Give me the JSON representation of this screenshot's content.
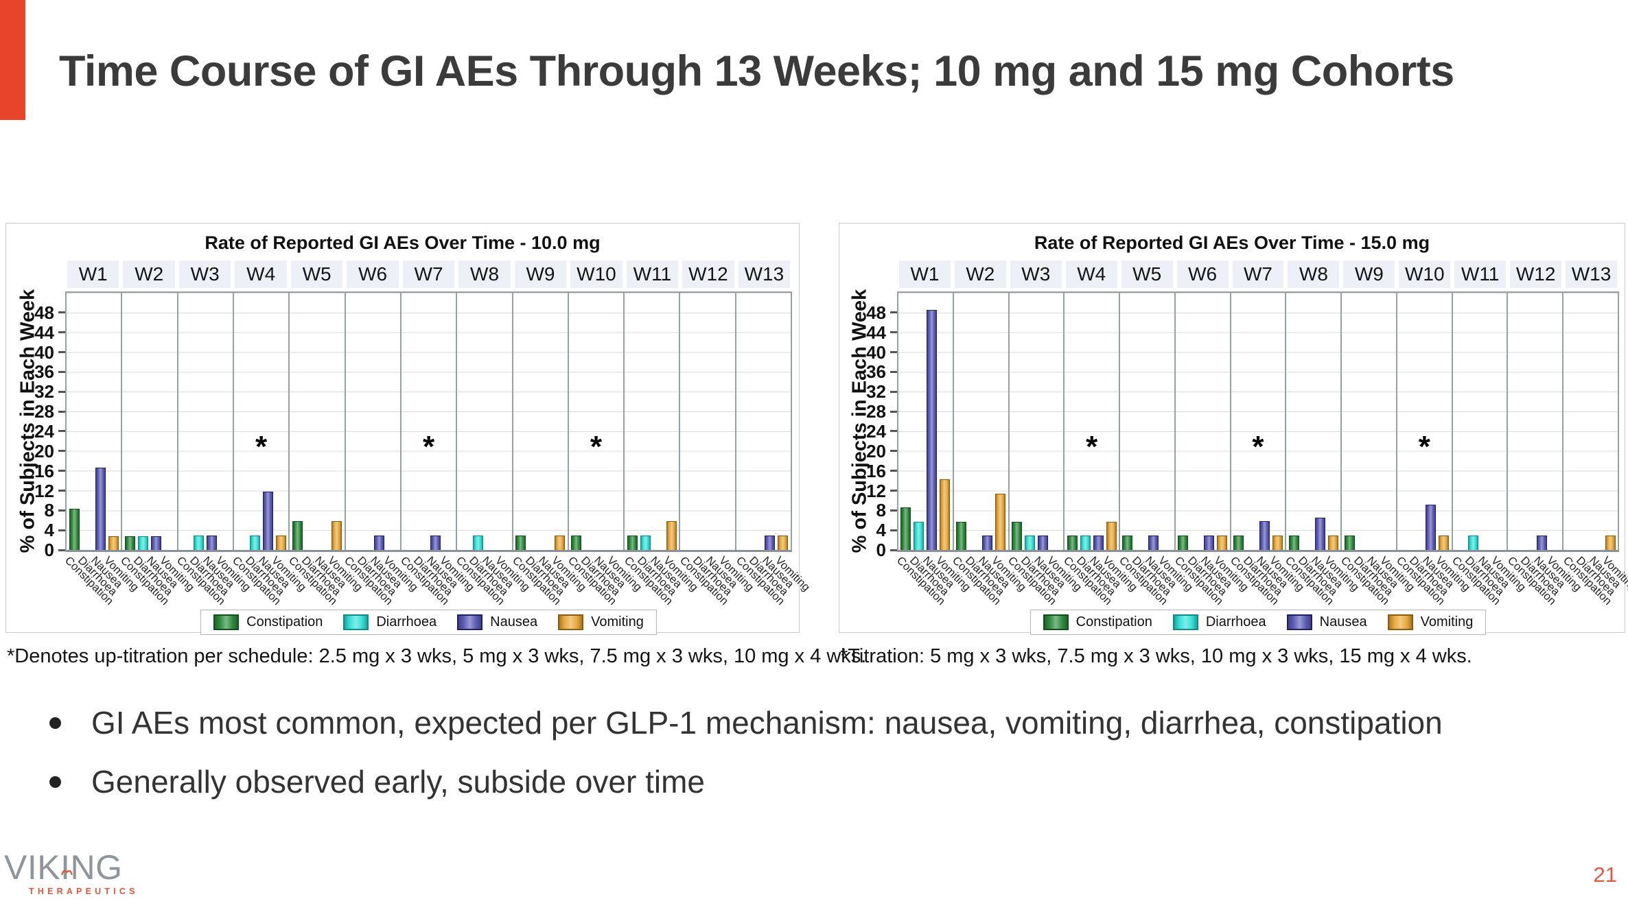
{
  "slide": {
    "title": "Time Course of GI AEs Through 13 Weeks; 10 mg and 15 mg Cohorts",
    "accent_color": "#E8432B",
    "bullets": [
      "GI AEs most common, expected per GLP-1 mechanism: nausea, vomiting, diarrhea, constipation",
      "Generally observed early, subside over time"
    ],
    "logo": {
      "name": "VIKING",
      "subtitle": "THERAPEUTICS"
    },
    "page_number": "21"
  },
  "chart_data": [
    {
      "type": "bar",
      "title": "Rate of Reported GI AEs Over Time - 10.0 mg",
      "ylabel": "% of Subjects in Each Week",
      "ylim": [
        0,
        52
      ],
      "ytick_step": 4,
      "ytick_max": 48,
      "grid": true,
      "legend_position": "bottom",
      "week_header_bg": "#EDF0F7",
      "categories": [
        "W1",
        "W2",
        "W3",
        "W4",
        "W5",
        "W6",
        "W7",
        "W8",
        "W9",
        "W10",
        "W11",
        "W12",
        "W13"
      ],
      "category_axis_labels": [
        "Constipation",
        "Diarrhoea",
        "Nausea",
        "Vomiting"
      ],
      "series": [
        {
          "name": "Constipation",
          "color": "#2F8B3E",
          "border": "#124F1D",
          "values": [
            8.3,
            2.8,
            0,
            0,
            5.9,
            0,
            0,
            0,
            2.9,
            2.9,
            2.9,
            0,
            0
          ]
        },
        {
          "name": "Diarrhoea",
          "color": "#35E0D6",
          "border": "#0B8C85",
          "values": [
            0,
            2.8,
            2.9,
            2.9,
            0,
            0,
            0,
            2.9,
            0,
            0,
            2.9,
            0,
            0
          ]
        },
        {
          "name": "Nausea",
          "color": "#5B5BB7",
          "border": "#1F1F63",
          "values": [
            16.7,
            2.8,
            2.9,
            11.8,
            0,
            2.9,
            2.9,
            0,
            0,
            0,
            0,
            0,
            2.9
          ]
        },
        {
          "name": "Vomiting",
          "color": "#E9A83C",
          "border": "#8A5B0B",
          "values": [
            2.8,
            0,
            0,
            2.9,
            5.9,
            0,
            0,
            0,
            2.9,
            0,
            5.9,
            0,
            2.9
          ]
        }
      ],
      "asterisk_categories": [
        "W4",
        "W7",
        "W10"
      ],
      "asterisk_marker": "*",
      "asterisk_y": 20,
      "footnote": "*Denotes up-titration per schedule: 2.5 mg x 3 wks, 5 mg x 3 wks, 7.5 mg x 3 wks, 10 mg x 4 wks."
    },
    {
      "type": "bar",
      "title": "Rate of Reported GI AEs Over Time - 15.0 mg",
      "ylabel": "% of Subjects in Each Week",
      "ylim": [
        0,
        52
      ],
      "ytick_step": 4,
      "ytick_max": 48,
      "grid": true,
      "legend_position": "bottom",
      "week_header_bg": "#EDF0F7",
      "categories": [
        "W1",
        "W2",
        "W3",
        "W4",
        "W5",
        "W6",
        "W7",
        "W8",
        "W9",
        "W10",
        "W11",
        "W12",
        "W13"
      ],
      "category_axis_labels": [
        "Constipation",
        "Diarrhoea",
        "Nausea",
        "Vomiting"
      ],
      "series": [
        {
          "name": "Constipation",
          "color": "#2F8B3E",
          "border": "#124F1D",
          "values": [
            8.6,
            5.7,
            5.7,
            2.9,
            2.9,
            2.9,
            2.9,
            2.9,
            2.9,
            0,
            0,
            0,
            0
          ]
        },
        {
          "name": "Diarrhoea",
          "color": "#35E0D6",
          "border": "#0B8C85",
          "values": [
            5.7,
            0,
            2.9,
            2.9,
            0,
            0,
            0,
            0,
            0,
            0,
            2.9,
            0,
            0
          ]
        },
        {
          "name": "Nausea",
          "color": "#5B5BB7",
          "border": "#1F1F63",
          "values": [
            48.6,
            2.9,
            2.9,
            2.9,
            2.9,
            2.9,
            5.9,
            6.5,
            0,
            9.1,
            0,
            2.9,
            0
          ]
        },
        {
          "name": "Vomiting",
          "color": "#E9A83C",
          "border": "#8A5B0B",
          "values": [
            14.3,
            11.4,
            0,
            5.7,
            0,
            2.9,
            2.9,
            2.9,
            0,
            2.9,
            0,
            0,
            2.9
          ]
        }
      ],
      "asterisk_categories": [
        "W4",
        "W7",
        "W10"
      ],
      "asterisk_marker": "*",
      "asterisk_y": 20,
      "footnote": "*Titration: 5 mg x 3 wks, 7.5 mg x 3 wks, 10 mg x 3 wks, 15 mg x 4 wks."
    }
  ]
}
